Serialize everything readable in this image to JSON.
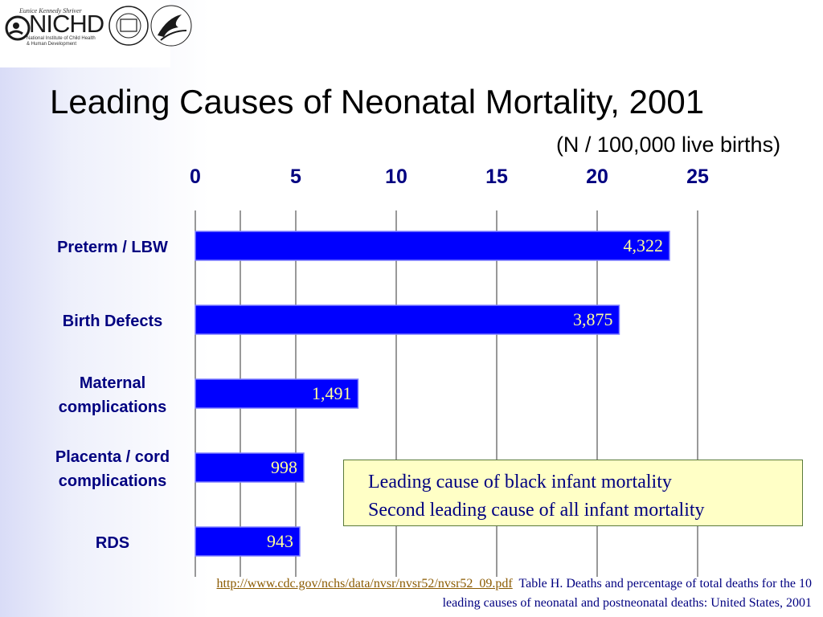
{
  "logo": {
    "name_text": "Eunice Kennedy Shriver",
    "acronym": "NICHD",
    "org_line1": "National Institute of Child Health",
    "org_line2": "& Human Development",
    "seal_text": "NATIONAL INSTITUTES OF HEALTH",
    "hhs_text": "DEPARTMENT OF HEALTH & HUMAN SERVICES USA"
  },
  "colors": {
    "bar_fill": "#0000ff",
    "bar_label": "#ffff99",
    "category_label": "#000080",
    "callout_bg": "#ffffc6",
    "gridline": "#333333"
  },
  "callout": {
    "line1": "Leading cause of black infant mortality",
    "line2": "Second leading cause of all infant mortality"
  },
  "source": {
    "url": "http://www.cdc.gov/nchs/data/nvsr/nvsr52/nvsr52_09.pdf",
    "table_word": "Table",
    "line1": "H. Deaths and percentage of total deaths for the 10",
    "line2": "leading causes of neonatal and postneonatal deaths: United States, 2001"
  },
  "chart_data": {
    "type": "bar",
    "orientation": "horizontal",
    "title": "Leading Causes of Neonatal Mortality, 2001",
    "subtitle": "(N / 100,000 live births)",
    "categories": [
      [
        "Preterm / LBW"
      ],
      [
        "Birth Defects"
      ],
      [
        "Maternal",
        "complications"
      ],
      [
        "Placenta / cord",
        "complications"
      ],
      [
        "RDS"
      ]
    ],
    "values": [
      23.6,
      21.1,
      8.1,
      5.4,
      5.2
    ],
    "data_labels": [
      "4,322",
      "3,875",
      "1,491",
      "998",
      "943"
    ],
    "xlim": [
      0,
      25
    ],
    "xticks": [
      0,
      5,
      10,
      15,
      20,
      25
    ],
    "xtick_labels": [
      "0",
      "5",
      "10",
      "15",
      "20",
      "25"
    ],
    "xaxis_position": "top",
    "grid": true
  }
}
